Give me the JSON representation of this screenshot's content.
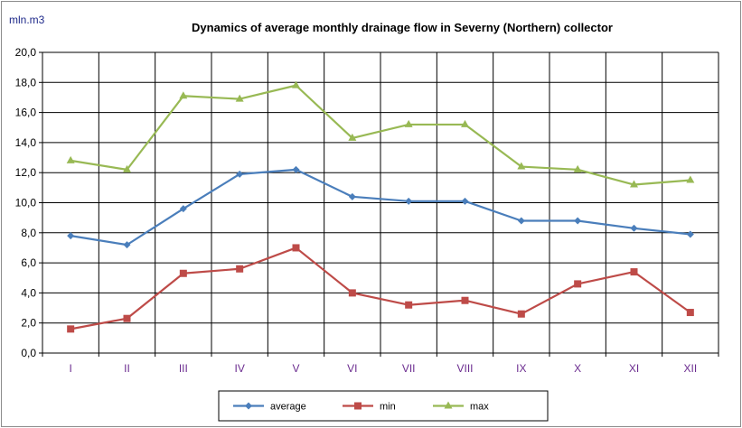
{
  "chart_data": {
    "type": "line",
    "title": "Dynamics of average monthly drainage flow in Severny (Northern) collector",
    "ylabel": "mln.m3",
    "xlabel": "",
    "ylim": [
      0,
      20
    ],
    "ytick_step": 2,
    "ytick_labels": [
      "0,0",
      "2,0",
      "4,0",
      "6,0",
      "8,0",
      "10,0",
      "12,0",
      "14,0",
      "16,0",
      "18,0",
      "20,0"
    ],
    "grid": true,
    "legend_position": "bottom",
    "categories": [
      "I",
      "II",
      "III",
      "IV",
      "V",
      "VI",
      "VII",
      "VIII",
      "IX",
      "X",
      "XI",
      "XII"
    ],
    "series": [
      {
        "name": "average",
        "color": "#4a7ebb",
        "marker": "diamond",
        "values": [
          7.8,
          7.2,
          9.6,
          11.9,
          12.2,
          10.4,
          10.1,
          10.1,
          8.8,
          8.8,
          8.3,
          7.9
        ]
      },
      {
        "name": "min",
        "color": "#be4b48",
        "marker": "square",
        "values": [
          1.6,
          2.3,
          5.3,
          5.6,
          7.0,
          4.0,
          3.2,
          3.5,
          2.6,
          4.6,
          5.4,
          2.7
        ]
      },
      {
        "name": "max",
        "color": "#98b954",
        "marker": "triangle",
        "values": [
          12.8,
          12.2,
          17.1,
          16.9,
          17.8,
          14.3,
          15.2,
          15.2,
          12.4,
          12.2,
          11.2,
          11.5
        ]
      }
    ]
  }
}
